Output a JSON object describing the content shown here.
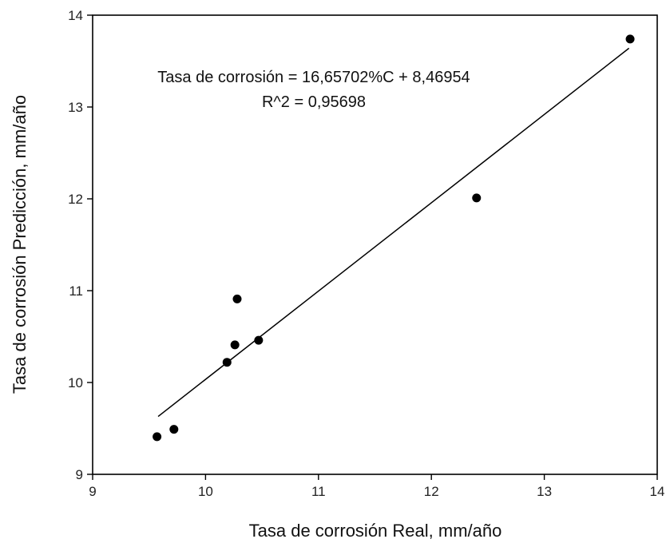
{
  "chart_data": {
    "type": "scatter",
    "title": "",
    "xlabel": "Tasa de corrosión Real, mm/año",
    "ylabel": "Tasa de corrosión Predicción, mm/año",
    "xlim": [
      9,
      14
    ],
    "ylim": [
      9,
      14
    ],
    "xticks": [
      9,
      10,
      11,
      12,
      13,
      14
    ],
    "yticks": [
      9,
      10,
      11,
      12,
      13,
      14
    ],
    "grid": false,
    "legend": "none",
    "series": [
      {
        "points": [
          {
            "x": 9.57,
            "y": 9.41
          },
          {
            "x": 9.72,
            "y": 9.49
          },
          {
            "x": 10.19,
            "y": 10.22
          },
          {
            "x": 10.26,
            "y": 10.41
          },
          {
            "x": 10.28,
            "y": 10.91
          },
          {
            "x": 10.47,
            "y": 10.46
          },
          {
            "x": 12.4,
            "y": 12.01
          },
          {
            "x": 13.76,
            "y": 13.74
          }
        ]
      }
    ],
    "fit_line": {
      "x": [
        9.58,
        13.75
      ],
      "y": [
        9.63,
        13.64
      ]
    },
    "annotations": [
      "Tasa de corrosión = 16,65702%C + 8,46954",
      "R^2 = 0,95698"
    ],
    "colors": {
      "points": "#000000",
      "line": "#000000",
      "axes": "#000000"
    }
  }
}
